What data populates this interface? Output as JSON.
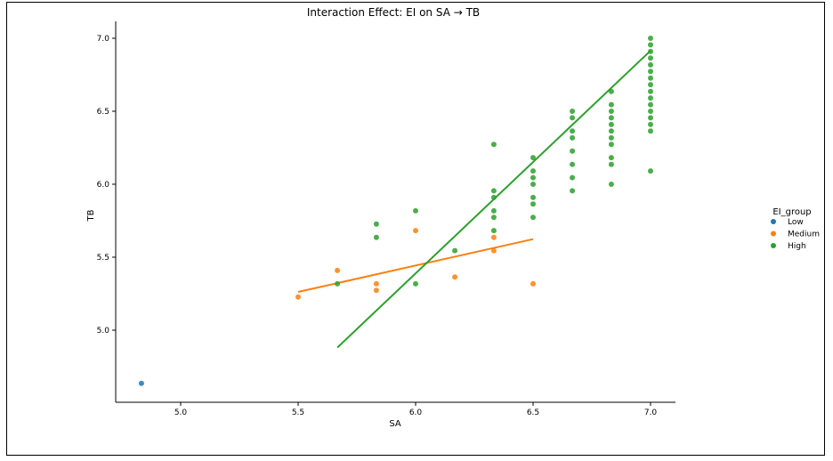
{
  "chart_data": {
    "type": "scatter",
    "title": "Interaction Effect: EI on SA → TB",
    "xlabel": "SA",
    "ylabel": "TB",
    "xlim": [
      4.75,
      7.1
    ],
    "ylim": [
      4.52,
      7.12
    ],
    "xticks": [
      "5.0",
      "5.5",
      "6.0",
      "6.5",
      "7.0"
    ],
    "yticks": [
      "5.0",
      "5.5",
      "6.0",
      "6.5",
      "7.0"
    ],
    "grid": false,
    "legend": {
      "title": "EI_group",
      "placement": "right",
      "entries": [
        "Low",
        "Medium",
        "High"
      ]
    },
    "series": [
      {
        "name": "Low",
        "color": "#1f77b4",
        "points": [
          [
            4.833,
            4.636
          ]
        ]
      },
      {
        "name": "Medium",
        "color": "#ff7f0e",
        "points": [
          [
            5.5,
            5.227
          ],
          [
            5.667,
            5.409
          ],
          [
            5.833,
            5.318
          ],
          [
            5.833,
            5.273
          ],
          [
            6.0,
            5.682
          ],
          [
            6.167,
            5.364
          ],
          [
            6.333,
            5.636
          ],
          [
            6.333,
            5.545
          ],
          [
            6.5,
            5.318
          ]
        ],
        "fit": [
          [
            5.5,
            5.262
          ],
          [
            6.5,
            5.624
          ]
        ]
      },
      {
        "name": "High",
        "color": "#2ca02c",
        "points": [
          [
            5.667,
            5.318
          ],
          [
            5.833,
            5.727
          ],
          [
            5.833,
            5.636
          ],
          [
            6.0,
            5.818
          ],
          [
            6.0,
            5.318
          ],
          [
            6.167,
            5.545
          ],
          [
            6.333,
            6.273
          ],
          [
            6.333,
            5.955
          ],
          [
            6.333,
            5.909
          ],
          [
            6.333,
            5.818
          ],
          [
            6.333,
            5.773
          ],
          [
            6.333,
            5.682
          ],
          [
            6.5,
            6.182
          ],
          [
            6.5,
            6.091
          ],
          [
            6.5,
            6.045
          ],
          [
            6.5,
            6.0
          ],
          [
            6.5,
            5.909
          ],
          [
            6.5,
            5.864
          ],
          [
            6.5,
            5.773
          ],
          [
            6.667,
            6.5
          ],
          [
            6.667,
            6.455
          ],
          [
            6.667,
            6.364
          ],
          [
            6.667,
            6.318
          ],
          [
            6.667,
            6.227
          ],
          [
            6.667,
            6.136
          ],
          [
            6.667,
            6.045
          ],
          [
            6.667,
            5.955
          ],
          [
            6.833,
            6.636
          ],
          [
            6.833,
            6.545
          ],
          [
            6.833,
            6.5
          ],
          [
            6.833,
            6.455
          ],
          [
            6.833,
            6.409
          ],
          [
            6.833,
            6.364
          ],
          [
            6.833,
            6.318
          ],
          [
            6.833,
            6.273
          ],
          [
            6.833,
            6.182
          ],
          [
            6.833,
            6.136
          ],
          [
            6.833,
            6.0
          ],
          [
            7.0,
            7.0
          ],
          [
            7.0,
            6.955
          ],
          [
            7.0,
            6.909
          ],
          [
            7.0,
            6.864
          ],
          [
            7.0,
            6.818
          ],
          [
            7.0,
            6.773
          ],
          [
            7.0,
            6.727
          ],
          [
            7.0,
            6.682
          ],
          [
            7.0,
            6.636
          ],
          [
            7.0,
            6.591
          ],
          [
            7.0,
            6.545
          ],
          [
            7.0,
            6.5
          ],
          [
            7.0,
            6.455
          ],
          [
            7.0,
            6.409
          ],
          [
            7.0,
            6.364
          ],
          [
            7.0,
            6.091
          ]
        ],
        "fit": [
          [
            5.667,
            4.881
          ],
          [
            7.0,
            6.915
          ]
        ]
      }
    ]
  }
}
